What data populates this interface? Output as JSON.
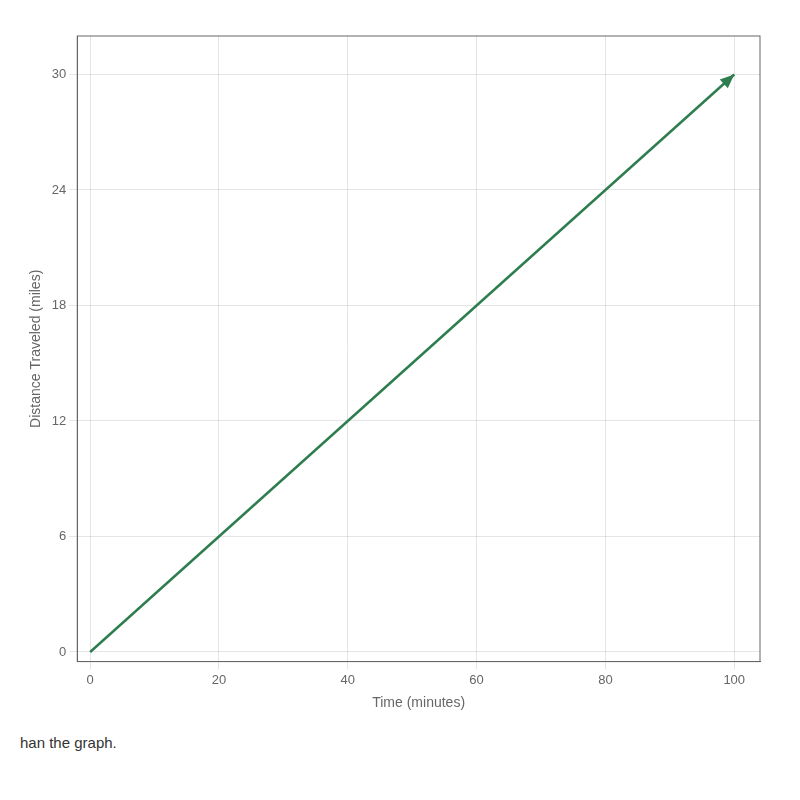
{
  "chart_data": {
    "type": "line",
    "x": [
      0,
      100
    ],
    "values": [
      0,
      30
    ],
    "color": "#2e7d4f",
    "xlabel": "Time (minutes)",
    "ylabel": "Distance Traveled (miles)",
    "xlim": [
      -2,
      104
    ],
    "ylim": [
      -0.5,
      32
    ],
    "xticks": [
      0,
      20,
      40,
      60,
      80,
      100
    ],
    "yticks": [
      0,
      6,
      12,
      18,
      24,
      30
    ],
    "grid": true,
    "annotations": [
      "han the graph."
    ]
  }
}
